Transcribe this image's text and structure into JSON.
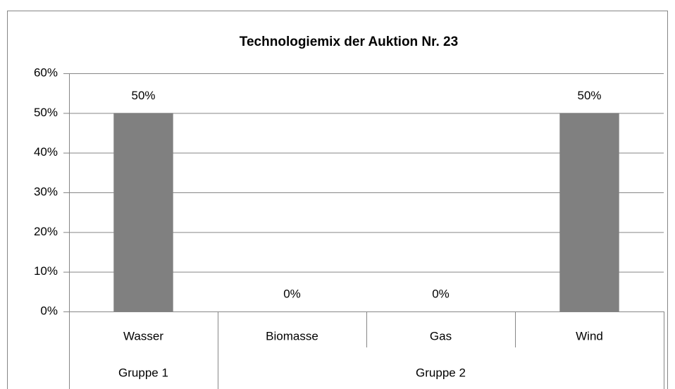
{
  "chart_data": {
    "type": "bar",
    "title": "Technologiemix der Auktion Nr. 23",
    "categories": [
      "Wasser",
      "Biomasse",
      "Gas",
      "Wind"
    ],
    "groups": [
      {
        "name": "Gruppe 1",
        "span": 1
      },
      {
        "name": "Gruppe 2",
        "span": 3
      }
    ],
    "values": [
      50,
      0,
      0,
      50
    ],
    "value_labels": [
      "50%",
      "0%",
      "0%",
      "50%"
    ],
    "color": "#808080",
    "ylim": [
      0,
      60
    ],
    "yticks": [
      {
        "value": 0,
        "label": "0%"
      },
      {
        "value": 10,
        "label": "10%"
      },
      {
        "value": 20,
        "label": "20%"
      },
      {
        "value": 30,
        "label": "30%"
      },
      {
        "value": 40,
        "label": "40%"
      },
      {
        "value": 50,
        "label": "50%"
      },
      {
        "value": 60,
        "label": "60%"
      }
    ],
    "grid": true
  }
}
